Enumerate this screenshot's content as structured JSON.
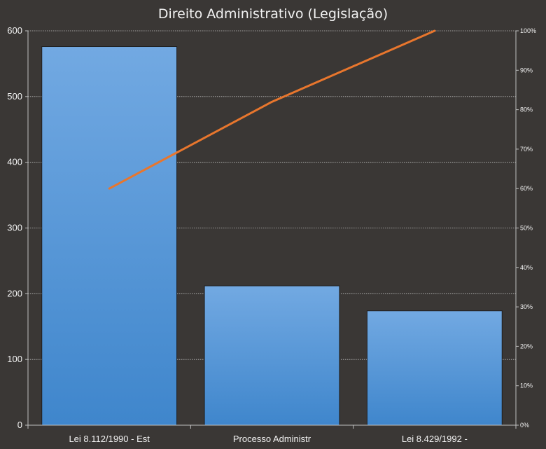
{
  "chart_data": {
    "type": "bar",
    "title": "Direito Administrativo (Legislação)",
    "categories": [
      "Lei 8.112/1990 - Est",
      "Processo Administr",
      "Lei 8.429/1992 -"
    ],
    "series": [
      {
        "values": [
          576,
          212,
          174
        ],
        "kind": "bar"
      },
      {
        "values": [
          60,
          82,
          100
        ],
        "kind": "line",
        "axis": "right"
      }
    ],
    "ylim": [
      0,
      600
    ],
    "yticks": [
      0,
      100,
      200,
      300,
      400,
      500,
      600
    ],
    "y2lim": [
      0,
      100
    ],
    "y2ticks": [
      "0%",
      "10%",
      "20%",
      "30%",
      "40%",
      "50%",
      "60%",
      "70%",
      "80%",
      "90%",
      "100%"
    ],
    "grid": true,
    "legend": "none",
    "colors": {
      "background": "#3a3735",
      "bar": "#4f93d6",
      "bar_light": "#72a9e2",
      "line": "#e8762d",
      "grid": "#bfbfbf",
      "text": "#f2f2f2"
    }
  }
}
